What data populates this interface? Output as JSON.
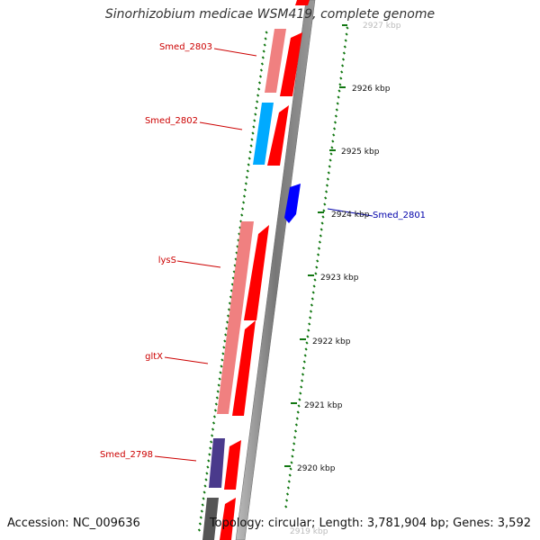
{
  "title": "Sinorhizobium medicae WSM419, complete genome",
  "accession": "Accession: NC_009636",
  "summary": "Topology: circular; Length: 3,781,904 bp; Genes: 3,592",
  "scale": [
    {
      "label": "2927 kbp",
      "faded": true
    },
    {
      "label": "2926 kbp"
    },
    {
      "label": "2925 kbp"
    },
    {
      "label": "2924 kbp"
    },
    {
      "label": "2923 kbp"
    },
    {
      "label": "2922 kbp"
    },
    {
      "label": "2921 kbp"
    },
    {
      "label": "2920 kbp"
    },
    {
      "label": "2919 kbp",
      "faded": true
    }
  ],
  "gene_labels": [
    {
      "name": "Smed_2803",
      "color": "#cc0000"
    },
    {
      "name": "Smed_2802",
      "color": "#cc0000"
    },
    {
      "name": "Smed_2801",
      "color": "#0000aa"
    },
    {
      "name": "lysS",
      "color": "#cc0000"
    },
    {
      "name": "gltX",
      "color": "#cc0000"
    },
    {
      "name": "Smed_2798",
      "color": "#cc0000"
    }
  ],
  "colors": {
    "cds_forward": "#ff0000",
    "cds_reverse_light": "#f08080",
    "cds_blue": "#0000ff",
    "cds_cyan": "#00aaff",
    "cds_purple": "#4a3a8c",
    "backbone": "#888888",
    "ticks": "#117711"
  }
}
